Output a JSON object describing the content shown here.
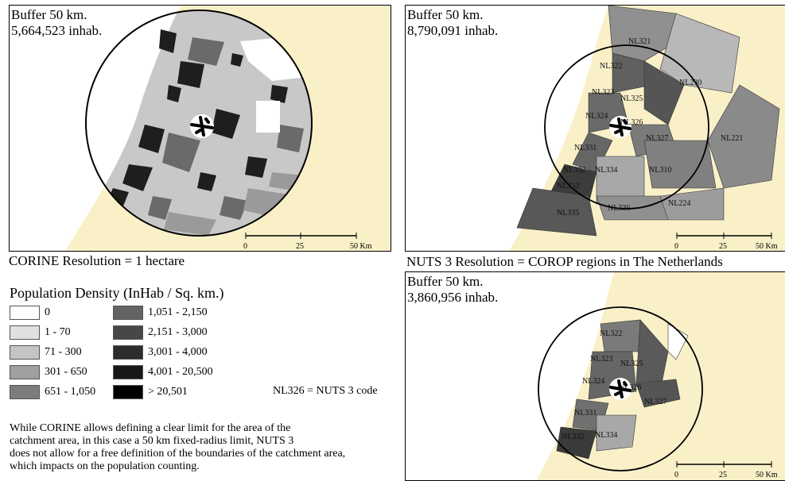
{
  "panel_corine": {
    "title_line1": "Buffer 50 km.",
    "title_line2": "5,664,523 inhab.",
    "scale": {
      "labels": [
        "0",
        "25",
        "50 Km"
      ]
    }
  },
  "caption_corine": "CORINE Resolution = 1 hectare",
  "panel_nuts_full": {
    "title_line1": "Buffer 50 km.",
    "title_line2": "8,790,091 inhab.",
    "region_labels": [
      "NL321",
      "NL322",
      "NL230",
      "NL323",
      "NL325",
      "NL324",
      "NL326",
      "NL327",
      "NL221",
      "NL331",
      "NL332",
      "NL334",
      "NL310",
      "NL333",
      "NL335",
      "NL336",
      "NL224"
    ],
    "scale": {
      "labels": [
        "0",
        "25",
        "50 Km"
      ]
    }
  },
  "caption_nuts": "NUTS 3 Resolution = COROP regions in The Netherlands",
  "panel_nuts_clip": {
    "title_line1": "Buffer 50 km.",
    "title_line2": "3,860,956 inhab.",
    "region_labels": [
      "NL322",
      "NL323",
      "NL325",
      "NL324",
      "NL326",
      "NL327",
      "NL331",
      "NL332",
      "NL334"
    ],
    "scale": {
      "labels": [
        "0",
        "25",
        "50 Km"
      ]
    }
  },
  "legend": {
    "title": "Population Density (InHab / Sq. km.)",
    "items": [
      {
        "label": "0",
        "color": "#ffffff"
      },
      {
        "label": "1 - 70",
        "color": "#e0e0e0"
      },
      {
        "label": "71 - 300",
        "color": "#c4c4c4"
      },
      {
        "label": "301 - 650",
        "color": "#a0a0a0"
      },
      {
        "label": "651 - 1,050",
        "color": "#7c7c7c"
      },
      {
        "label": "1,051 - 2,150",
        "color": "#636363"
      },
      {
        "label": "2,151 - 3,000",
        "color": "#474747"
      },
      {
        "label": "3,001 - 4,000",
        "color": "#2c2c2c"
      },
      {
        "label": "4,001 - 20,500",
        "color": "#181818"
      },
      {
        "label": "> 20,501",
        "color": "#000000"
      }
    ]
  },
  "code_note": "NL326 = NUTS 3 code",
  "footnote": {
    "line1": "While CORINE allows defining a clear limit for the area of the",
    "line2": "catchment area, in this case a 50 km fixed-radius limit, NUTS 3",
    "line3": "does not allow for a free definition of the boundaries of the catchment area,",
    "line4": "which impacts on the population counting."
  },
  "colors": {
    "sea": "#ffffff",
    "land_outside": "#faf0c8"
  }
}
